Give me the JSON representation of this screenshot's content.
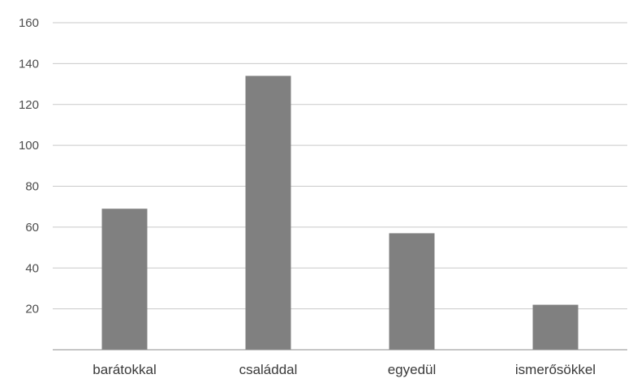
{
  "chart_data": {
    "type": "bar",
    "title": "",
    "xlabel": "",
    "ylabel": "",
    "categories": [
      "barátokkal",
      "családdal",
      "egyedül",
      "ismerősökkel"
    ],
    "values": [
      69,
      134,
      57,
      22
    ],
    "ylim": [
      0,
      160
    ],
    "yticks": [
      20,
      40,
      60,
      80,
      100,
      120,
      140,
      160
    ],
    "grid": true,
    "legend": "none",
    "colors": {
      "bar": "#808080",
      "grid": "#c9c9c9",
      "axis": "#8c8c8c",
      "text": "#4d4d4d"
    }
  }
}
